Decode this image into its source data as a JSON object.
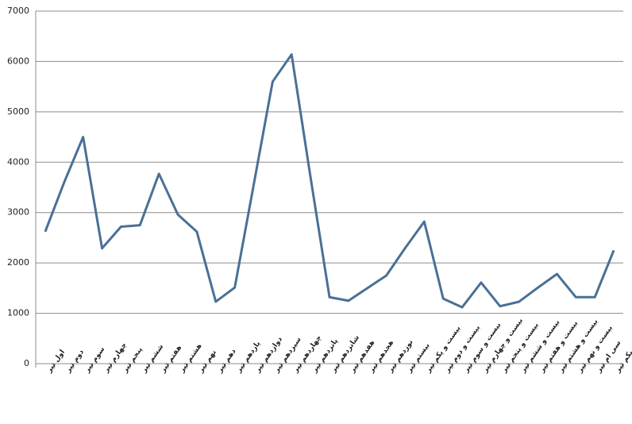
{
  "chart_data": {
    "type": "line",
    "categories": [
      "اول تیر",
      "دوم تیر",
      "سوم تیر",
      "چهارم تیر",
      "پنجم تیر",
      "ششم تیر",
      "هفتم تیر",
      "هشتم تیر",
      "نهم تیر",
      "دهم تیر",
      "یازدهم تیر",
      "دوازدهم تیر",
      "سیزدهم تیر",
      "چهاردهم تیر",
      "پانزدهم تیر",
      "شانزدهم تیر",
      "هفدهم تیر",
      "هجدهم تیر",
      "نوزدهم تیر",
      "بیستم تیر",
      "بیست و یکم تیر",
      "بیست و دوم تیر",
      "بیست و سوم تیر",
      "بیست و چهارم تیر",
      "بیست و پنجم تیر",
      "بیست و ششم تیر",
      "بیست و هفتم تیر",
      "بیست و هشتم تیر",
      "بیست و نهم تیر",
      "سی ام تیر",
      "سی و یکم تیر"
    ],
    "series": [
      {
        "color": "#4a7095",
        "values": [
          2620,
          3600,
          4500,
          2290,
          2720,
          2750,
          3770,
          2960,
          2620,
          1230,
          1510,
          3550,
          5600,
          6140,
          3700,
          1320,
          1250,
          1500,
          1750,
          2300,
          2820,
          1290,
          1120,
          1610,
          1140,
          1230,
          1510,
          1780,
          1320,
          1320,
          2250
        ]
      }
    ],
    "ylim": [
      0,
      7000
    ],
    "yticks": [
      0,
      1000,
      2000,
      3000,
      4000,
      5000,
      6000,
      7000
    ],
    "grid": true
  }
}
